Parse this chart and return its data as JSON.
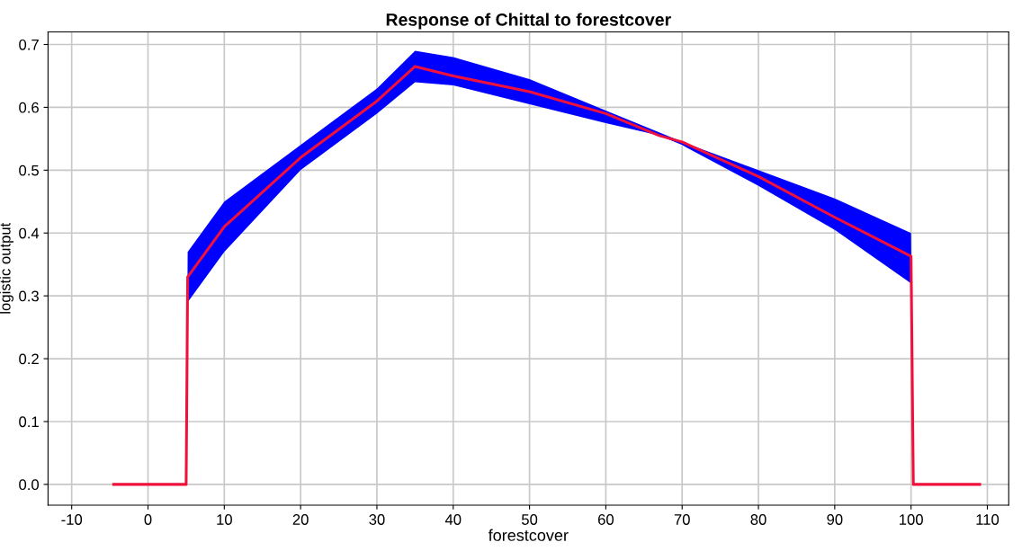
{
  "chart_data": {
    "type": "line",
    "title": "Response of Chittal to forestcover",
    "xlabel": "forestcover",
    "ylabel": "logistic output",
    "x": [
      -4.5,
      5,
      5.2,
      10,
      20,
      30,
      35,
      40,
      50,
      60,
      67,
      70,
      80,
      90,
      100,
      100.3,
      109
    ],
    "series": [
      {
        "color": "#f0103c",
        "values": [
          0,
          0,
          0.33,
          0.41,
          0.52,
          0.61,
          0.665,
          0.65,
          0.625,
          0.59,
          0.555,
          0.545,
          0.49,
          0.425,
          0.363,
          0,
          0
        ],
        "lower": [
          0,
          0,
          0.29,
          0.37,
          0.5,
          0.59,
          0.64,
          0.635,
          0.605,
          0.575,
          0.555,
          0.54,
          0.475,
          0.405,
          0.32,
          0,
          0
        ],
        "upper": [
          0,
          0,
          0.37,
          0.45,
          0.54,
          0.63,
          0.69,
          0.68,
          0.645,
          0.595,
          0.56,
          0.545,
          0.5,
          0.455,
          0.4,
          0,
          0
        ]
      }
    ],
    "xlim": [
      -13.1,
      112.8
    ],
    "ylim": [
      -0.033,
      0.72
    ],
    "xticks": [
      -10,
      0,
      10,
      20,
      30,
      40,
      50,
      60,
      70,
      80,
      90,
      100,
      110
    ],
    "yticks": [
      {
        "value": 0,
        "label": "0.0"
      },
      {
        "value": 0.1,
        "label": "0.1"
      },
      {
        "value": 0.2,
        "label": "0.2"
      },
      {
        "value": 0.3,
        "label": "0.3"
      },
      {
        "value": 0.4,
        "label": "0.4"
      },
      {
        "value": 0.5,
        "label": "0.5"
      },
      {
        "value": 0.6,
        "label": "0.6"
      },
      {
        "value": 0.7,
        "label": "0.7"
      }
    ],
    "grid": true,
    "legend": false,
    "marker": "none",
    "line_style": "solid"
  }
}
